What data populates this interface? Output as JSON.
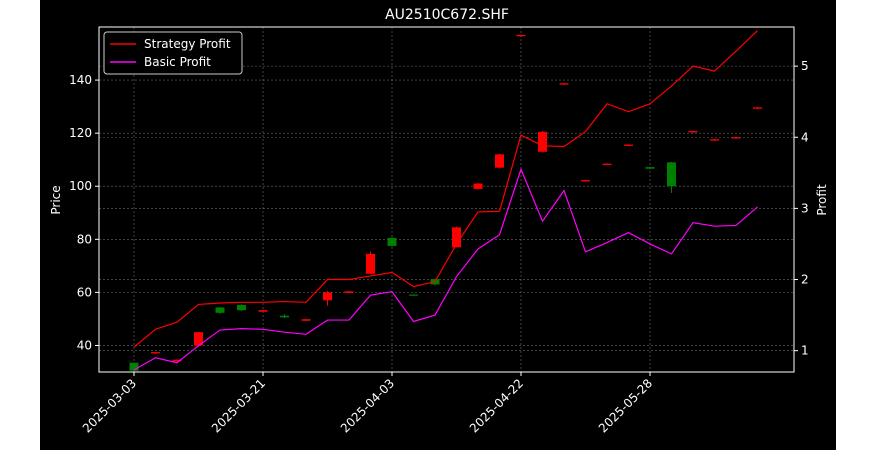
{
  "chart_data": {
    "type": "candlestick+line",
    "title": "AU2510C672.SHF",
    "xlabel": "",
    "ylabel": "Price",
    "y2label": "Profit",
    "ylim": [
      30,
      160
    ],
    "y2lim": [
      0.7,
      5.55
    ],
    "yticks": [
      40,
      60,
      80,
      100,
      120,
      140
    ],
    "y2ticks": [
      1,
      2,
      3,
      4,
      5
    ],
    "xtick_labels": [
      "2025-03-03",
      "2025-03-21",
      "2025-04-03",
      "2025-04-22",
      "2025-05-28"
    ],
    "xtick_index": [
      0,
      6,
      12,
      18,
      24
    ],
    "grid": true,
    "legend_position": "upper-left",
    "background": "#000000",
    "colors": {
      "up": "#ff0000",
      "down": "#008000",
      "strategy": "#ff0000",
      "basic": "#ff00ff"
    },
    "candles": [
      {
        "open": 33.5,
        "close": 30.5,
        "high": 33.5,
        "low": 30.0
      },
      {
        "open": 37.0,
        "close": 37.5,
        "high": 37.6,
        "low": 36.8
      },
      {
        "open": 34.0,
        "close": 34.6,
        "high": 34.8,
        "low": 33.9
      },
      {
        "open": 40.0,
        "close": 45.0,
        "high": 45.2,
        "low": 39.5
      },
      {
        "open": 54.3,
        "close": 52.3,
        "high": 54.5,
        "low": 52.0
      },
      {
        "open": 55.3,
        "close": 53.3,
        "high": 55.5,
        "low": 53.0
      },
      {
        "open": 52.7,
        "close": 53.3,
        "high": 53.4,
        "low": 52.6
      },
      {
        "open": 51.2,
        "close": 50.6,
        "high": 51.8,
        "low": 50.3
      },
      {
        "open": 49.3,
        "close": 49.9,
        "high": 50.0,
        "low": 49.2
      },
      {
        "open": 57.0,
        "close": 60.0,
        "high": 60.5,
        "low": 55.0
      },
      {
        "open": 59.8,
        "close": 60.4,
        "high": 60.5,
        "low": 59.7
      },
      {
        "open": 67.0,
        "close": 74.5,
        "high": 75.5,
        "low": 67.0
      },
      {
        "open": 80.5,
        "close": 77.5,
        "high": 80.8,
        "low": 77.2
      },
      {
        "open": 59.2,
        "close": 58.9,
        "high": 59.3,
        "low": 58.8
      },
      {
        "open": 65.0,
        "close": 63.0,
        "high": 65.3,
        "low": 62.6
      },
      {
        "open": 77.0,
        "close": 84.5,
        "high": 84.8,
        "low": 77.0
      },
      {
        "open": 99.0,
        "close": 101.0,
        "high": 101.2,
        "low": 98.8
      },
      {
        "open": 107.0,
        "close": 112.0,
        "high": 112.3,
        "low": 106.7
      },
      {
        "open": 156.5,
        "close": 157.0,
        "high": 157.1,
        "low": 156.3
      },
      {
        "open": 113.0,
        "close": 120.5,
        "high": 120.8,
        "low": 112.6
      },
      {
        "open": 138.3,
        "close": 138.8,
        "high": 138.9,
        "low": 138.2
      },
      {
        "open": 101.8,
        "close": 102.3,
        "high": 102.4,
        "low": 101.7
      },
      {
        "open": 108.0,
        "close": 108.5,
        "high": 108.6,
        "low": 107.9
      },
      {
        "open": 115.2,
        "close": 115.7,
        "high": 115.8,
        "low": 115.1
      },
      {
        "open": 107.2,
        "close": 106.6,
        "high": 107.3,
        "low": 106.4
      },
      {
        "open": 109.0,
        "close": 100.0,
        "high": 109.2,
        "low": 97.5
      },
      {
        "open": 120.3,
        "close": 120.8,
        "high": 120.9,
        "low": 120.2
      },
      {
        "open": 117.2,
        "close": 117.7,
        "high": 117.8,
        "low": 117.1
      },
      {
        "open": 118.0,
        "close": 118.5,
        "high": 118.6,
        "low": 117.9
      },
      {
        "open": 129.2,
        "close": 129.7,
        "high": 129.8,
        "low": 129.1
      }
    ],
    "series": [
      {
        "name": "Strategy Profit",
        "axis": "right",
        "values": [
          1.05,
          1.3,
          1.4,
          1.65,
          1.67,
          1.68,
          1.68,
          1.69,
          1.68,
          2.0,
          2.0,
          2.05,
          2.1,
          1.9,
          1.97,
          2.5,
          2.95,
          2.96,
          4.03,
          3.88,
          3.87,
          4.08,
          4.47,
          4.36,
          4.47,
          4.72,
          5.0,
          4.93,
          5.21,
          5.5
        ]
      },
      {
        "name": "Basic Profit",
        "axis": "right",
        "values": [
          0.73,
          0.9,
          0.83,
          1.07,
          1.29,
          1.31,
          1.3,
          1.26,
          1.23,
          1.43,
          1.43,
          1.78,
          1.83,
          1.41,
          1.5,
          2.04,
          2.43,
          2.63,
          3.55,
          2.82,
          3.25,
          2.39,
          2.52,
          2.66,
          2.5,
          2.36,
          2.8,
          2.75,
          2.76,
          3.02
        ]
      }
    ]
  }
}
